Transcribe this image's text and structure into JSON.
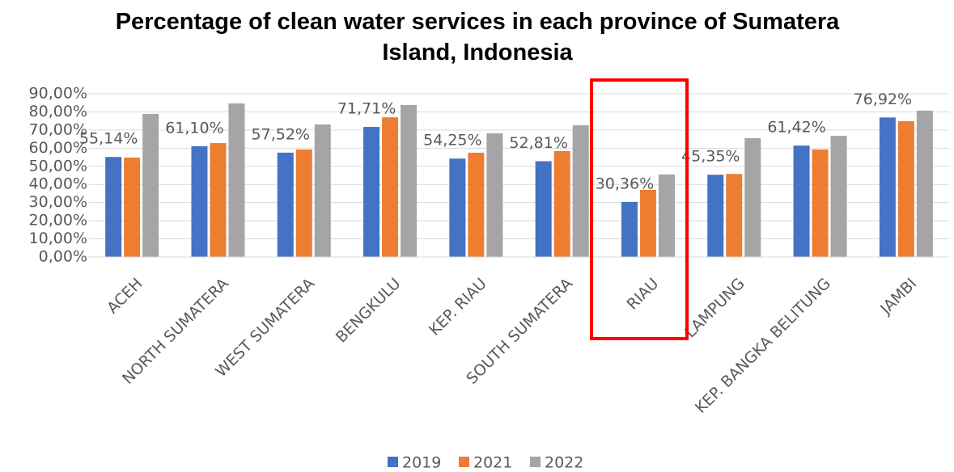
{
  "chart_data": {
    "type": "bar",
    "title": "Percentage of clean water services in each province of Sumatera Island, Indonesia",
    "categories": [
      "ACEH",
      "NORTH SUMATERA",
      "WEST SUMATERA",
      "BENGKULU",
      "KEP. RIAU",
      "SOUTH SUMATERA",
      "RIAU",
      "LAMPUNG",
      "KEP. BANGKA BELITUNG",
      "JAMBI"
    ],
    "series": [
      {
        "name": "2019",
        "color": "#4472c4",
        "values": [
          55.14,
          61.1,
          57.52,
          71.71,
          54.25,
          52.81,
          30.36,
          45.35,
          61.42,
          76.92
        ],
        "value_labels": [
          "55,14%",
          "61,10%",
          "57,52%",
          "71,71%",
          "54,25%",
          "52,81%",
          "30,36%",
          "45,35%",
          "61,42%",
          "76,92%"
        ]
      },
      {
        "name": "2021",
        "color": "#ed7d31",
        "values": [
          54.8,
          62.8,
          59.3,
          77,
          57.5,
          58.4,
          37,
          45.8,
          59.3,
          74.9
        ]
      },
      {
        "name": "2022",
        "color": "#a5a5a5",
        "values": [
          78.9,
          84.7,
          73.1,
          83.8,
          68.2,
          72.6,
          45.5,
          65.5,
          66.8,
          80.7
        ]
      }
    ],
    "ylim": [
      0,
      90
    ],
    "yticks": [
      {
        "value": 0,
        "label": "0,00%"
      },
      {
        "value": 10,
        "label": "10,00%"
      },
      {
        "value": 20,
        "label": "20,00%"
      },
      {
        "value": 30,
        "label": "30,00%"
      },
      {
        "value": 40,
        "label": "40,00%"
      },
      {
        "value": 50,
        "label": "50,00%"
      },
      {
        "value": 60,
        "label": "60,00%"
      },
      {
        "value": 70,
        "label": "70,00%"
      },
      {
        "value": 80,
        "label": "80,00%"
      },
      {
        "value": 90,
        "label": "90,00%"
      }
    ],
    "grid": true,
    "legend": "bottom"
  }
}
